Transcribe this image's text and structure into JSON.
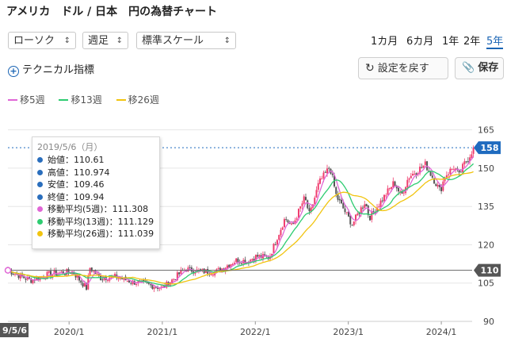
{
  "title": "アメリカ　ドル / 日本　円の為替チャート",
  "controls": {
    "chart_type": "ローソク",
    "interval": "週足",
    "scale": "標準スケール",
    "periods": [
      "1カ月",
      "6カ月",
      "1年",
      "2年",
      "5年"
    ],
    "active_period": "5年",
    "technical_label": "テクニカル指標",
    "reset_label": "設定を戻す",
    "save_label": "保存"
  },
  "legend": [
    {
      "label": "移5週",
      "color": "#e066d6"
    },
    {
      "label": "移13週",
      "color": "#2ecc71"
    },
    {
      "label": "移26週",
      "color": "#f1c40f"
    }
  ],
  "tooltip": {
    "date": "2019/5/6（月）",
    "rows": [
      {
        "label": "始値：110.61",
        "color": "#2a6ebd"
      },
      {
        "label": "高値：110.974",
        "color": "#2a6ebd"
      },
      {
        "label": "安値：109.46",
        "color": "#2a6ebd"
      },
      {
        "label": "終値：109.94",
        "color": "#2a6ebd"
      },
      {
        "label": "移動平均(5週)：111.308",
        "color": "#e066d6"
      },
      {
        "label": "移動平均(13週)：111.129",
        "color": "#2ecc71"
      },
      {
        "label": "移動平均(26週)：111.039",
        "color": "#f1c40f"
      }
    ]
  },
  "colors": {
    "up": "#ef3d6e",
    "down": "#555555",
    "current_marker": "#1f6bbf",
    "cursor_marker": "#555555"
  },
  "chart_data": {
    "type": "candlestick",
    "title": "アメリカ　ドル / 日本　円の為替チャート",
    "yticks": [
      90,
      105,
      120,
      135,
      150,
      165
    ],
    "ylim": [
      90,
      168
    ],
    "x_start": "2019/5/6",
    "x_end": "2024/5",
    "xticks": [
      "2020/1",
      "2021/1",
      "2022/1",
      "2023/1",
      "2024/1"
    ],
    "x_start_label": "9/5/6",
    "current_price_label": "158",
    "cursor_price_label": "110",
    "current_price": 158,
    "cursor_price": 110,
    "anchors": [
      [
        "2019/5/6",
        110.0
      ],
      [
        "2019/8/1",
        106.0
      ],
      [
        "2019/10/15",
        108.5
      ],
      [
        "2020/1/15",
        109.5
      ],
      [
        "2020/3/9",
        103.0
      ],
      [
        "2020/3/23",
        111.0
      ],
      [
        "2020/5/1",
        107.0
      ],
      [
        "2020/7/1",
        107.5
      ],
      [
        "2020/9/1",
        105.5
      ],
      [
        "2020/11/1",
        104.5
      ],
      [
        "2021/1/1",
        103.0
      ],
      [
        "2021/3/31",
        110.5
      ],
      [
        "2021/6/1",
        109.5
      ],
      [
        "2021/8/1",
        109.5
      ],
      [
        "2021/10/20",
        114.0
      ],
      [
        "2021/12/1",
        113.5
      ],
      [
        "2022/1/5",
        115.5
      ],
      [
        "2022/2/25",
        115.0
      ],
      [
        "2022/3/28",
        123.0
      ],
      [
        "2022/4/28",
        130.5
      ],
      [
        "2022/5/25",
        127.0
      ],
      [
        "2022/7/14",
        138.5
      ],
      [
        "2022/8/2",
        131.5
      ],
      [
        "2022/9/7",
        144.0
      ],
      [
        "2022/10/21",
        150.5
      ],
      [
        "2022/11/15",
        139.0
      ],
      [
        "2023/1/16",
        128.0
      ],
      [
        "2023/3/8",
        137.0
      ],
      [
        "2023/3/24",
        130.5
      ],
      [
        "2023/5/30",
        140.0
      ],
      [
        "2023/6/30",
        144.5
      ],
      [
        "2023/7/28",
        139.0
      ],
      [
        "2023/8/25",
        146.5
      ],
      [
        "2023/10/31",
        151.5
      ],
      [
        "2023/12/28",
        141.0
      ],
      [
        "2024/1/15",
        147.0
      ],
      [
        "2024/2/20",
        150.5
      ],
      [
        "2024/3/11",
        147.0
      ],
      [
        "2024/3/29",
        151.3
      ],
      [
        "2024/4/19",
        154.5
      ],
      [
        "2024/5/6",
        158.0
      ]
    ]
  }
}
